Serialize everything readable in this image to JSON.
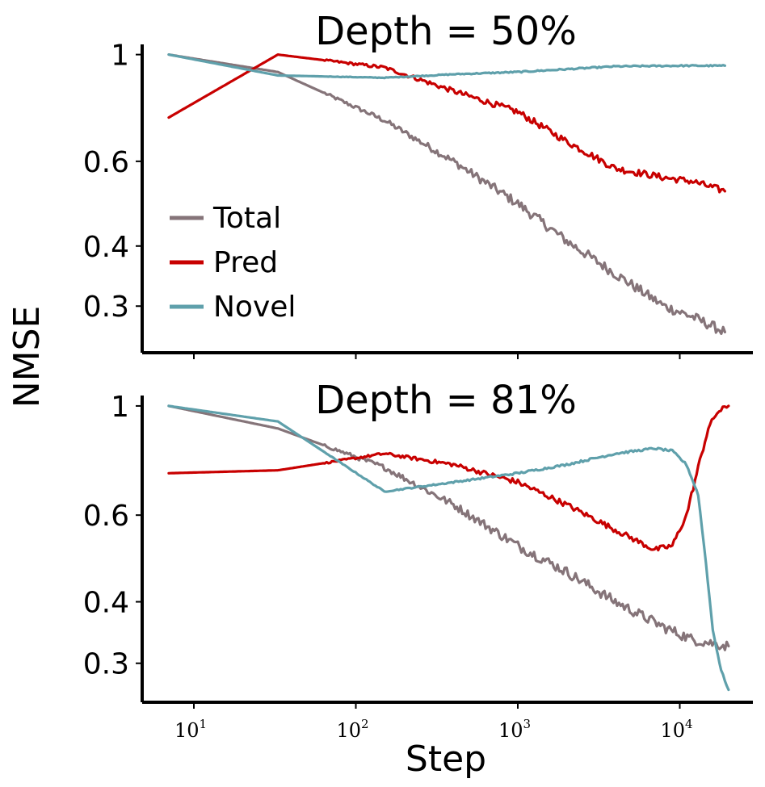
{
  "chart_data": [
    {
      "type": "line",
      "title": "Depth = 50%",
      "xlabel": "Step",
      "ylabel": "NMSE",
      "xscale": "log",
      "yscale": "log",
      "xlim": [
        5,
        30000
      ],
      "ylim": [
        0.24,
        1.05
      ],
      "yticks": [
        {
          "value": 1,
          "label": "1"
        },
        {
          "value": 0.6,
          "label": "0.6"
        },
        {
          "value": 0.4,
          "label": "0.4"
        },
        {
          "value": 0.3,
          "label": "0.3"
        }
      ],
      "xticks": [
        {
          "value": 10,
          "base": "10",
          "exp": "1"
        },
        {
          "value": 100,
          "base": "10",
          "exp": "2"
        },
        {
          "value": 1000,
          "base": "10",
          "exp": "3"
        },
        {
          "value": 10000,
          "base": "10",
          "exp": "4"
        }
      ],
      "legend": {
        "position": "lower-left",
        "entries": [
          "Total",
          "Pred",
          "Novel"
        ]
      },
      "series": [
        {
          "name": "Total",
          "color": "#857479",
          "noise": 0.015,
          "points": [
            [
              7,
              1.0
            ],
            [
              33,
              0.92
            ],
            [
              150,
              0.73
            ],
            [
              400,
              0.6
            ],
            [
              1000,
              0.49
            ],
            [
              2000,
              0.41
            ],
            [
              4000,
              0.35
            ],
            [
              8000,
              0.3
            ],
            [
              12000,
              0.285
            ],
            [
              19000,
              0.265
            ]
          ]
        },
        {
          "name": "Pred",
          "color": "#c80000",
          "noise": 0.01,
          "points": [
            [
              7,
              0.74
            ],
            [
              33,
              1.0
            ],
            [
              150,
              0.94
            ],
            [
              400,
              0.84
            ],
            [
              1000,
              0.76
            ],
            [
              2000,
              0.66
            ],
            [
              4000,
              0.58
            ],
            [
              8000,
              0.555
            ],
            [
              12000,
              0.545
            ],
            [
              19000,
              0.52
            ]
          ]
        },
        {
          "name": "Novel",
          "color": "#5fa0ab",
          "noise": 0.002,
          "points": [
            [
              7,
              1.0
            ],
            [
              33,
              0.905
            ],
            [
              150,
              0.895
            ],
            [
              400,
              0.91
            ],
            [
              1000,
              0.92
            ],
            [
              4000,
              0.945
            ],
            [
              10000,
              0.948
            ],
            [
              19000,
              0.948
            ]
          ]
        }
      ]
    },
    {
      "type": "line",
      "title": "Depth = 81%",
      "xlabel": "Step",
      "ylabel": "NMSE",
      "xscale": "log",
      "yscale": "log",
      "xlim": [
        5,
        30000
      ],
      "ylim": [
        0.25,
        1.05
      ],
      "yticks": [
        {
          "value": 1,
          "label": "1"
        },
        {
          "value": 0.6,
          "label": "0.6"
        },
        {
          "value": 0.4,
          "label": "0.4"
        },
        {
          "value": 0.3,
          "label": "0.3"
        }
      ],
      "xticks": [
        {
          "value": 10,
          "base": "10",
          "exp": "1"
        },
        {
          "value": 100,
          "base": "10",
          "exp": "2"
        },
        {
          "value": 1000,
          "base": "10",
          "exp": "3"
        },
        {
          "value": 10000,
          "base": "10",
          "exp": "4"
        }
      ],
      "series": [
        {
          "name": "Total",
          "color": "#857479",
          "noise": 0.015,
          "points": [
            [
              7,
              1.0
            ],
            [
              33,
              0.9
            ],
            [
              150,
              0.75
            ],
            [
              400,
              0.63
            ],
            [
              1000,
              0.52
            ],
            [
              2000,
              0.46
            ],
            [
              4000,
              0.4
            ],
            [
              8000,
              0.355
            ],
            [
              12000,
              0.335
            ],
            [
              20000,
              0.325
            ]
          ]
        },
        {
          "name": "Pred",
          "color": "#c80000",
          "noise": 0.008,
          "points": [
            [
              7,
              0.73
            ],
            [
              33,
              0.74
            ],
            [
              150,
              0.8
            ],
            [
              400,
              0.76
            ],
            [
              1000,
              0.7
            ],
            [
              2000,
              0.63
            ],
            [
              4000,
              0.56
            ],
            [
              7000,
              0.51
            ],
            [
              9000,
              0.52
            ],
            [
              11000,
              0.6
            ],
            [
              13000,
              0.75
            ],
            [
              15000,
              0.9
            ],
            [
              17000,
              0.97
            ],
            [
              20000,
              1.0
            ]
          ]
        },
        {
          "name": "Novel",
          "color": "#5fa0ab",
          "noise": 0.003,
          "points": [
            [
              7,
              1.0
            ],
            [
              33,
              0.93
            ],
            [
              150,
              0.67
            ],
            [
              400,
              0.7
            ],
            [
              1000,
              0.73
            ],
            [
              2000,
              0.76
            ],
            [
              4000,
              0.8
            ],
            [
              7000,
              0.82
            ],
            [
              9000,
              0.81
            ],
            [
              11000,
              0.76
            ],
            [
              13000,
              0.66
            ],
            [
              14500,
              0.48
            ],
            [
              16000,
              0.35
            ],
            [
              18000,
              0.29
            ],
            [
              20000,
              0.265
            ]
          ]
        }
      ]
    }
  ],
  "axis_titles": {
    "y": "NMSE",
    "x": "Step"
  }
}
